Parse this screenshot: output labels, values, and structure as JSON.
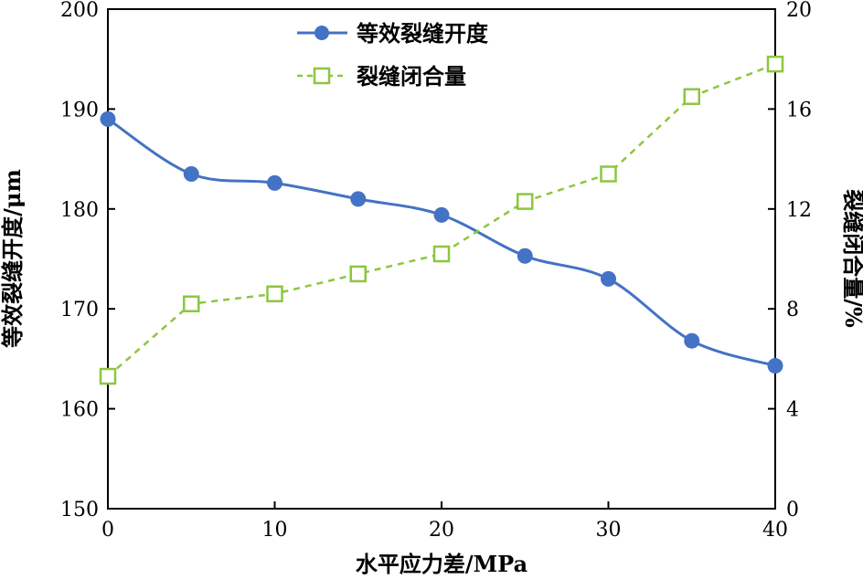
{
  "chart_data": {
    "type": "line",
    "title": "",
    "xlabel": "水平应力差/MPa",
    "ylabel": "等效裂缝开度/μm",
    "y2label": "裂缝闭合量/%",
    "xlim": [
      0,
      40
    ],
    "ylim": [
      150,
      200
    ],
    "y2lim": [
      0,
      20
    ],
    "x_ticks": [
      "0",
      "10",
      "20",
      "30",
      "40"
    ],
    "y_ticks": [
      "150",
      "160",
      "170",
      "180",
      "190",
      "200"
    ],
    "y2_ticks": [
      "0",
      "4",
      "8",
      "12",
      "16",
      "20"
    ],
    "grid": false,
    "legend_position": "top-center",
    "series": [
      {
        "name": "等效裂缝开度",
        "axis": "left",
        "color": "#4472C4",
        "line_style": "solid",
        "marker": "filled-circle",
        "x": [
          0,
          5,
          10,
          15,
          20,
          25,
          30,
          35,
          40
        ],
        "values": [
          189.0,
          183.5,
          182.6,
          181.0,
          179.4,
          175.3,
          173.0,
          166.8,
          164.3
        ]
      },
      {
        "name": "裂缝闭合量",
        "axis": "right",
        "color": "#8DC63F",
        "line_style": "dashed",
        "marker": "open-square",
        "x": [
          0,
          5,
          10,
          15,
          20,
          25,
          30,
          35,
          40
        ],
        "values": [
          5.3,
          8.2,
          8.6,
          9.4,
          10.2,
          12.3,
          13.4,
          16.5,
          17.8
        ]
      }
    ]
  }
}
